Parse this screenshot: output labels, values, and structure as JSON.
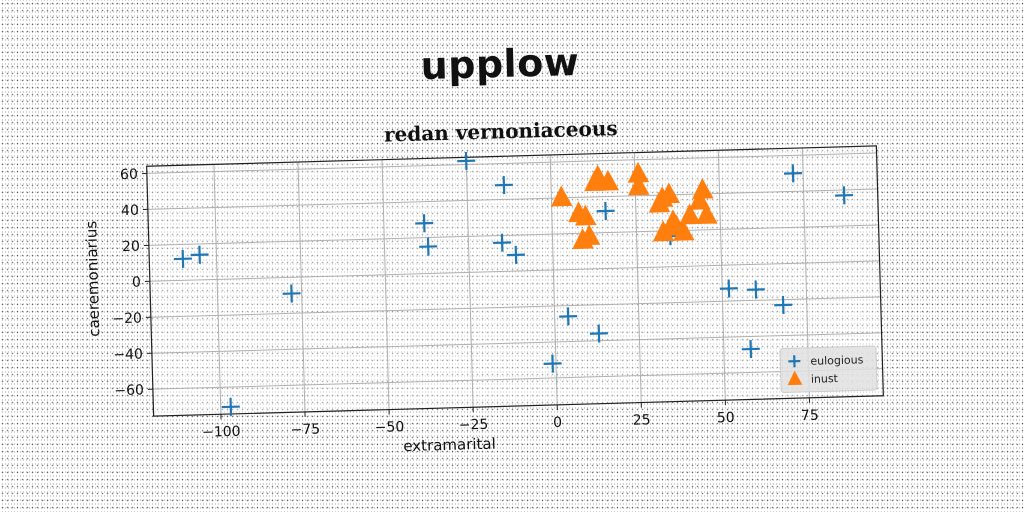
{
  "suptitle": "upplow",
  "chart_data": {
    "type": "scatter",
    "title": "redan vernoniaceous",
    "xlabel": "extramarital",
    "ylabel": "caeremoniarius",
    "xlim": [
      -120,
      97
    ],
    "ylim": [
      -75,
      64
    ],
    "xticks": [
      -100,
      -75,
      -50,
      -25,
      0,
      25,
      50,
      75
    ],
    "yticks": [
      -60,
      -40,
      -20,
      0,
      20,
      40,
      60
    ],
    "grid": true,
    "legend_position": "bottom-right",
    "series": [
      {
        "name": "eulogious",
        "marker": "plus",
        "color": "#1f77b4",
        "points": [
          [
            -110,
            12
          ],
          [
            -105,
            14
          ],
          [
            -97,
            -71
          ],
          [
            -78,
            -9
          ],
          [
            -38,
            28
          ],
          [
            -37,
            15
          ],
          [
            -25,
            62
          ],
          [
            -14,
            48
          ],
          [
            -15,
            16
          ],
          [
            -11,
            9
          ],
          [
            4,
            -26
          ],
          [
            -1,
            -52
          ],
          [
            13,
            -36
          ],
          [
            16,
            32
          ],
          [
            35,
            17
          ],
          [
            52,
            -13
          ],
          [
            60,
            -14
          ],
          [
            68,
            -23
          ],
          [
            58,
            -47
          ],
          [
            72,
            50
          ],
          [
            87,
            37
          ]
        ]
      },
      {
        "name": "inust",
        "marker": "triangle",
        "color": "#ff7f0e",
        "points": [
          [
            3,
            40
          ],
          [
            8,
            31
          ],
          [
            10,
            29
          ],
          [
            9,
            16
          ],
          [
            11,
            18
          ],
          [
            13,
            48
          ],
          [
            14,
            51
          ],
          [
            17,
            48
          ],
          [
            26,
            52
          ],
          [
            26,
            45
          ],
          [
            32,
            35
          ],
          [
            33,
            38
          ],
          [
            35,
            40
          ],
          [
            36,
            25
          ],
          [
            37,
            22
          ],
          [
            39,
            19
          ],
          [
            41,
            28
          ],
          [
            33,
            19
          ],
          [
            45,
            42
          ],
          [
            44,
            36
          ],
          [
            46,
            28
          ]
        ]
      }
    ]
  }
}
